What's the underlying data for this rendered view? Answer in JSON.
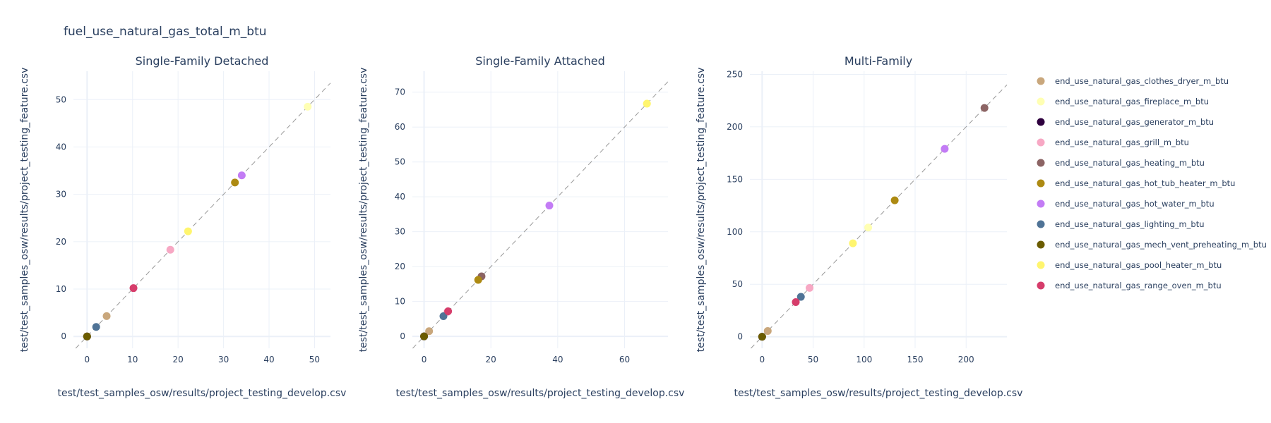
{
  "title": "fuel_use_natural_gas_total_m_btu",
  "legend": {
    "entries": [
      {
        "name": "end_use_natural_gas_clothes_dryer_m_btu",
        "color": "#C9A77C"
      },
      {
        "name": "end_use_natural_gas_fireplace_m_btu",
        "color": "#FFFFB3"
      },
      {
        "name": "end_use_natural_gas_generator_m_btu",
        "color": "#2E003E"
      },
      {
        "name": "end_use_natural_gas_grill_m_btu",
        "color": "#F7A8C4"
      },
      {
        "name": "end_use_natural_gas_heating_m_btu",
        "color": "#8C6464"
      },
      {
        "name": "end_use_natural_gas_hot_tub_heater_m_btu",
        "color": "#AD8A12"
      },
      {
        "name": "end_use_natural_gas_hot_water_m_btu",
        "color": "#C37CF5"
      },
      {
        "name": "end_use_natural_gas_lighting_m_btu",
        "color": "#4F7396"
      },
      {
        "name": "end_use_natural_gas_mech_vent_preheating_m_btu",
        "color": "#6B5C00"
      },
      {
        "name": "end_use_natural_gas_pool_heater_m_btu",
        "color": "#FFF56E"
      },
      {
        "name": "end_use_natural_gas_range_oven_m_btu",
        "color": "#D63D6B"
      }
    ]
  },
  "chart_data": [
    {
      "type": "scatter",
      "title": "Single-Family Detached",
      "xlabel": "test/test_samples_osw/results/project_testing_develop.csv",
      "ylabel": "test/test_samples_osw/results/project_testing_feature.csv",
      "xlim": [
        -3,
        53.5
      ],
      "ylim": [
        -2.5,
        56
      ],
      "xticks": [
        0,
        10,
        20,
        30,
        40,
        50
      ],
      "yticks": [
        0,
        10,
        20,
        30,
        40,
        50
      ],
      "diagonal": true,
      "points": [
        {
          "series": "end_use_natural_gas_clothes_dryer_m_btu",
          "x": 4.3,
          "y": 4.3
        },
        {
          "series": "end_use_natural_gas_fireplace_m_btu",
          "x": 48.5,
          "y": 48.5
        },
        {
          "series": "end_use_natural_gas_generator_m_btu",
          "x": 0,
          "y": 0
        },
        {
          "series": "end_use_natural_gas_grill_m_btu",
          "x": 18.3,
          "y": 18.3
        },
        {
          "series": "end_use_natural_gas_heating_m_btu",
          "x": 0,
          "y": 0
        },
        {
          "series": "end_use_natural_gas_hot_tub_heater_m_btu",
          "x": 32.5,
          "y": 32.5
        },
        {
          "series": "end_use_natural_gas_hot_water_m_btu",
          "x": 34,
          "y": 34
        },
        {
          "series": "end_use_natural_gas_lighting_m_btu",
          "x": 2,
          "y": 2
        },
        {
          "series": "end_use_natural_gas_mech_vent_preheating_m_btu",
          "x": 0,
          "y": 0
        },
        {
          "series": "end_use_natural_gas_pool_heater_m_btu",
          "x": 22.2,
          "y": 22.2
        },
        {
          "series": "end_use_natural_gas_range_oven_m_btu",
          "x": 10.2,
          "y": 10.2
        }
      ]
    },
    {
      "type": "scatter",
      "title": "Single-Family Attached",
      "xlabel": "test/test_samples_osw/results/project_testing_develop.csv",
      "ylabel": "test/test_samples_osw/results/project_testing_feature.csv",
      "xlim": [
        -3.5,
        73
      ],
      "ylim": [
        -3.4,
        76
      ],
      "xticks": [
        0,
        20,
        40,
        60
      ],
      "yticks": [
        0,
        10,
        20,
        30,
        40,
        50,
        60,
        70
      ],
      "diagonal": true,
      "points": [
        {
          "series": "end_use_natural_gas_clothes_dryer_m_btu",
          "x": 1.5,
          "y": 1.5
        },
        {
          "series": "end_use_natural_gas_fireplace_m_btu",
          "x": 66.7,
          "y": 66.7
        },
        {
          "series": "end_use_natural_gas_generator_m_btu",
          "x": 0,
          "y": 0
        },
        {
          "series": "end_use_natural_gas_grill_m_btu",
          "x": 7,
          "y": 7
        },
        {
          "series": "end_use_natural_gas_heating_m_btu",
          "x": 17.2,
          "y": 17.2
        },
        {
          "series": "end_use_natural_gas_hot_tub_heater_m_btu",
          "x": 16.2,
          "y": 16.2
        },
        {
          "series": "end_use_natural_gas_hot_water_m_btu",
          "x": 37.5,
          "y": 37.5
        },
        {
          "series": "end_use_natural_gas_lighting_m_btu",
          "x": 5.8,
          "y": 5.8
        },
        {
          "series": "end_use_natural_gas_mech_vent_preheating_m_btu",
          "x": 0,
          "y": 0
        },
        {
          "series": "end_use_natural_gas_pool_heater_m_btu",
          "x": 66.7,
          "y": 66.7
        },
        {
          "series": "end_use_natural_gas_range_oven_m_btu",
          "x": 7.2,
          "y": 7.2
        }
      ]
    },
    {
      "type": "scatter",
      "title": "Multi-Family",
      "xlabel": "test/test_samples_osw/results/project_testing_develop.csv",
      "ylabel": "test/test_samples_osw/results/project_testing_feature.csv",
      "xlim": [
        -12,
        240
      ],
      "ylim": [
        -11,
        253
      ],
      "xticks": [
        0,
        50,
        100,
        150,
        200
      ],
      "yticks": [
        0,
        50,
        100,
        150,
        200,
        250
      ],
      "diagonal": true,
      "points": [
        {
          "series": "end_use_natural_gas_clothes_dryer_m_btu",
          "x": 5.5,
          "y": 5.5
        },
        {
          "series": "end_use_natural_gas_fireplace_m_btu",
          "x": 104,
          "y": 104
        },
        {
          "series": "end_use_natural_gas_generator_m_btu",
          "x": 0,
          "y": 0
        },
        {
          "series": "end_use_natural_gas_grill_m_btu",
          "x": 46.5,
          "y": 46.5
        },
        {
          "series": "end_use_natural_gas_heating_m_btu",
          "x": 218,
          "y": 218
        },
        {
          "series": "end_use_natural_gas_hot_tub_heater_m_btu",
          "x": 130,
          "y": 130
        },
        {
          "series": "end_use_natural_gas_hot_water_m_btu",
          "x": 179,
          "y": 179
        },
        {
          "series": "end_use_natural_gas_lighting_m_btu",
          "x": 38,
          "y": 38
        },
        {
          "series": "end_use_natural_gas_mech_vent_preheating_m_btu",
          "x": 0,
          "y": 0
        },
        {
          "series": "end_use_natural_gas_pool_heater_m_btu",
          "x": 89,
          "y": 89
        },
        {
          "series": "end_use_natural_gas_range_oven_m_btu",
          "x": 33,
          "y": 33
        }
      ]
    }
  ]
}
